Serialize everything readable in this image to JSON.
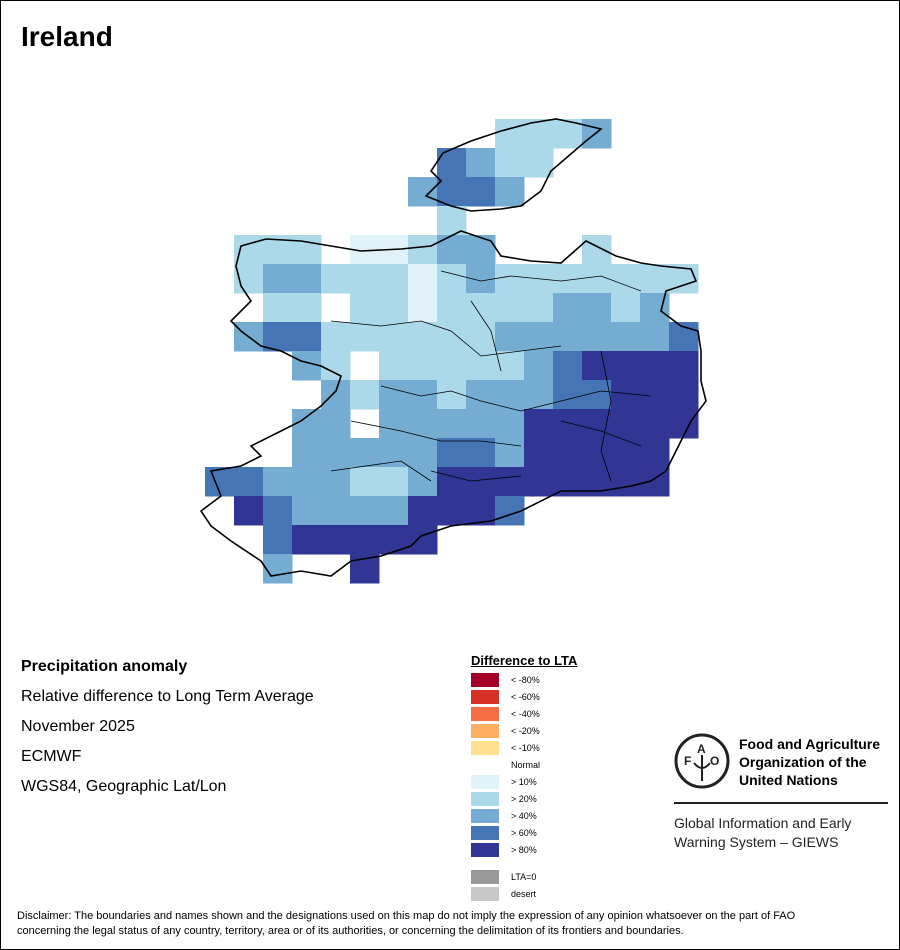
{
  "title": "Ireland",
  "info": {
    "line1": "Precipitation anomaly",
    "line2": "Relative difference to Long Term Average",
    "line3": "November 2025",
    "line4": "ECMWF",
    "line5": "WGS84, Geographic Lat/Lon"
  },
  "legend": {
    "title": "Difference to LTA",
    "items": [
      {
        "label": "< -80%",
        "color": "#a50026"
      },
      {
        "label": "< -60%",
        "color": "#d73027"
      },
      {
        "label": "< -40%",
        "color": "#f46d43"
      },
      {
        "label": "< -20%",
        "color": "#fdae61"
      },
      {
        "label": "< -10%",
        "color": "#fee090"
      },
      {
        "label": "Normal",
        "color": "#ffffff"
      },
      {
        "label": "> 10%",
        "color": "#e0f3f8"
      },
      {
        "label": "> 20%",
        "color": "#abd9e9"
      },
      {
        "label": "> 40%",
        "color": "#74add1"
      },
      {
        "label": "> 60%",
        "color": "#4575b4"
      },
      {
        "label": "> 80%",
        "color": "#313695"
      },
      {
        "label": "LTA=0",
        "color": "#999999"
      },
      {
        "label": "desert",
        "color": "#c8c8c8"
      }
    ]
  },
  "fao": {
    "name_line1": "Food and Agriculture",
    "name_line2": "Organization of the",
    "name_line3": "United Nations",
    "logo_text": "FAO FIAT PANIS",
    "giews_line1": "Global Information and Early",
    "giews_line2": "Warning System – GIEWS"
  },
  "disclaimer_line1": "Disclaimer: The boundaries and names shown and the designations used on this map do not imply the expression of any opinion whatsoever on the part of FAO",
  "disclaimer_line2": "concerning the legal status of any country, territory, area or of its authorities, or concerning the delimitation of its frontiers and boundaries.",
  "grid": {
    "class_colors": [
      "#ffffff",
      "#e0f3f8",
      "#abd9e9",
      "#74add1",
      "#4575b4",
      "#313695"
    ],
    "rows": [
      "00000000002223000",
      "00000000432200000",
      "00000003443000000",
      "00000000200000000",
      "02220112330002000",
      "02332221232222222",
      "00220221222233230",
      "03442222223333334",
      "00032022222345555",
      "00003233233344555",
      "00033033333555555",
      "00033333443555550",
      "44333223555555550",
      "05433335554000000",
      "00455555000000000",
      "00300500000000000"
    ]
  }
}
